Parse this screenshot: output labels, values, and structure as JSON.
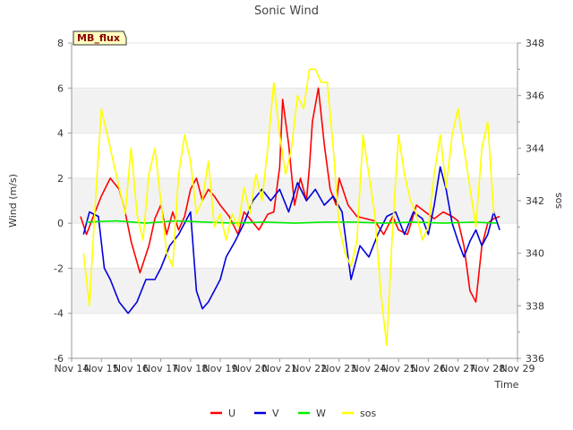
{
  "chart_data": {
    "type": "line",
    "title": "Sonic Wind",
    "badge": "MB_flux",
    "xlabel": "Time",
    "ylabel": "Wind (m/s)",
    "y2label": "sos",
    "x_ticks": [
      "Nov 14",
      "Nov 15",
      "Nov 16",
      "Nov 17",
      "Nov 18",
      "Nov 19",
      "Nov 20",
      "Nov 21",
      "Nov 22",
      "Nov 23",
      "Nov 24",
      "Nov 25",
      "Nov 26",
      "Nov 27",
      "Nov 28",
      "Nov 29"
    ],
    "xlim": [
      14,
      29
    ],
    "ylim": [
      -6,
      8
    ],
    "y_ticks": [
      -6,
      -4,
      -2,
      0,
      2,
      4,
      6,
      8
    ],
    "y2lim": [
      336,
      348
    ],
    "y2_ticks": [
      336,
      338,
      340,
      342,
      344,
      346,
      348
    ],
    "series": [
      {
        "name": "U",
        "color": "#ff0000",
        "axis": "left",
        "x": [
          14.3,
          14.5,
          14.7,
          15.0,
          15.3,
          15.6,
          15.8,
          16.0,
          16.3,
          16.6,
          16.8,
          17.0,
          17.2,
          17.4,
          17.6,
          17.8,
          18.0,
          18.2,
          18.4,
          18.6,
          18.8,
          19.0,
          19.3,
          19.6,
          19.8,
          20.0,
          20.3,
          20.6,
          20.8,
          21.0,
          21.1,
          21.3,
          21.5,
          21.7,
          21.9,
          22.0,
          22.1,
          22.3,
          22.5,
          22.7,
          22.9,
          23.0,
          23.3,
          23.6,
          23.9,
          24.2,
          24.5,
          24.8,
          25.0,
          25.3,
          25.6,
          25.9,
          26.2,
          26.5,
          26.8,
          27.0,
          27.2,
          27.4,
          27.6,
          27.8,
          28.0,
          28.2,
          28.4
        ],
        "y": [
          0.3,
          -0.5,
          0.2,
          1.2,
          2.0,
          1.5,
          0.5,
          -0.8,
          -2.2,
          -1.0,
          0.2,
          0.8,
          -0.5,
          0.5,
          -0.3,
          0.3,
          1.5,
          2.0,
          1.0,
          1.5,
          1.2,
          0.8,
          0.3,
          -0.5,
          0.5,
          0.2,
          -0.3,
          0.4,
          0.5,
          2.5,
          5.5,
          3.5,
          0.8,
          2.0,
          1.0,
          2.5,
          4.5,
          6.0,
          3.5,
          1.5,
          0.8,
          2.0,
          0.8,
          0.3,
          0.2,
          0.1,
          -0.5,
          0.3,
          -0.3,
          -0.5,
          0.8,
          0.5,
          0.2,
          0.5,
          0.3,
          0.1,
          -1.0,
          -3.0,
          -3.5,
          -1.0,
          0.0,
          0.2,
          0.3
        ]
      },
      {
        "name": "V",
        "color": "#0000dd",
        "axis": "left",
        "x": [
          14.4,
          14.6,
          14.9,
          15.1,
          15.3,
          15.6,
          15.9,
          16.2,
          16.5,
          16.8,
          17.0,
          17.3,
          17.6,
          17.8,
          18.0,
          18.2,
          18.4,
          18.6,
          18.8,
          19.0,
          19.2,
          19.5,
          19.8,
          20.1,
          20.4,
          20.7,
          21.0,
          21.3,
          21.6,
          21.9,
          22.2,
          22.5,
          22.8,
          23.1,
          23.4,
          23.7,
          24.0,
          24.3,
          24.6,
          24.9,
          25.2,
          25.5,
          25.8,
          26.0,
          26.2,
          26.4,
          26.6,
          26.8,
          27.0,
          27.2,
          27.4,
          27.6,
          27.8,
          28.0,
          28.2,
          28.4
        ],
        "y": [
          -0.5,
          0.5,
          0.3,
          -2.0,
          -2.5,
          -3.5,
          -4.0,
          -3.5,
          -2.5,
          -2.5,
          -2.0,
          -1.0,
          -0.5,
          0.0,
          0.5,
          -3.0,
          -3.8,
          -3.5,
          -3.0,
          -2.5,
          -1.5,
          -0.8,
          0.0,
          1.0,
          1.5,
          1.0,
          1.5,
          0.5,
          1.8,
          1.0,
          1.5,
          0.8,
          1.2,
          0.5,
          -2.5,
          -1.0,
          -1.5,
          -0.5,
          0.3,
          0.5,
          -0.5,
          0.5,
          0.2,
          -0.5,
          0.8,
          2.5,
          1.5,
          0.0,
          -0.8,
          -1.5,
          -0.8,
          -0.3,
          -1.0,
          -0.5,
          0.5,
          -0.3
        ]
      },
      {
        "name": "W",
        "color": "#00ee00",
        "axis": "left",
        "x": [
          14.5,
          15.5,
          16.5,
          17.5,
          18.5,
          19.5,
          20.5,
          21.5,
          22.5,
          23.5,
          24.5,
          25.5,
          26.5,
          27.5,
          28.3
        ],
        "y": [
          0.05,
          0.1,
          0.0,
          0.1,
          0.05,
          0.0,
          0.05,
          0.0,
          0.05,
          0.05,
          0.0,
          0.05,
          0.0,
          0.05,
          0.0
        ]
      },
      {
        "name": "sos",
        "color": "#ffff00",
        "axis": "right",
        "x": [
          14.4,
          14.5,
          14.6,
          14.8,
          15.0,
          15.2,
          15.4,
          15.6,
          15.8,
          16.0,
          16.2,
          16.4,
          16.6,
          16.8,
          17.0,
          17.2,
          17.4,
          17.6,
          17.8,
          18.0,
          18.2,
          18.4,
          18.6,
          18.8,
          19.0,
          19.2,
          19.4,
          19.6,
          19.8,
          20.0,
          20.2,
          20.4,
          20.6,
          20.8,
          21.0,
          21.2,
          21.4,
          21.6,
          21.8,
          22.0,
          22.2,
          22.4,
          22.6,
          22.8,
          23.0,
          23.2,
          23.4,
          23.6,
          23.8,
          24.0,
          24.2,
          24.4,
          24.6,
          24.8,
          25.0,
          25.2,
          25.4,
          25.6,
          25.8,
          26.0,
          26.2,
          26.4,
          26.6,
          26.8,
          27.0,
          27.2,
          27.4,
          27.6,
          27.8,
          28.0,
          28.2
        ],
        "y": [
          340.0,
          339.0,
          338.0,
          342.0,
          345.5,
          344.5,
          343.5,
          342.5,
          341.5,
          344.0,
          341.5,
          340.5,
          343.0,
          344.0,
          342.0,
          340.0,
          339.5,
          343.0,
          344.5,
          343.5,
          341.5,
          342.0,
          343.5,
          341.0,
          341.5,
          340.5,
          341.5,
          341.0,
          342.5,
          341.5,
          343.0,
          342.0,
          344.0,
          346.5,
          344.5,
          343.0,
          344.0,
          346.0,
          345.5,
          347.0,
          347.0,
          346.5,
          346.5,
          344.0,
          341.0,
          340.0,
          339.5,
          340.5,
          344.5,
          343.0,
          341.5,
          338.5,
          336.5,
          341.0,
          344.5,
          343.0,
          342.0,
          341.5,
          340.5,
          341.0,
          343.0,
          344.5,
          342.5,
          344.5,
          345.5,
          344.0,
          342.5,
          341.0,
          344.0,
          345.0,
          341.5
        ]
      }
    ]
  }
}
